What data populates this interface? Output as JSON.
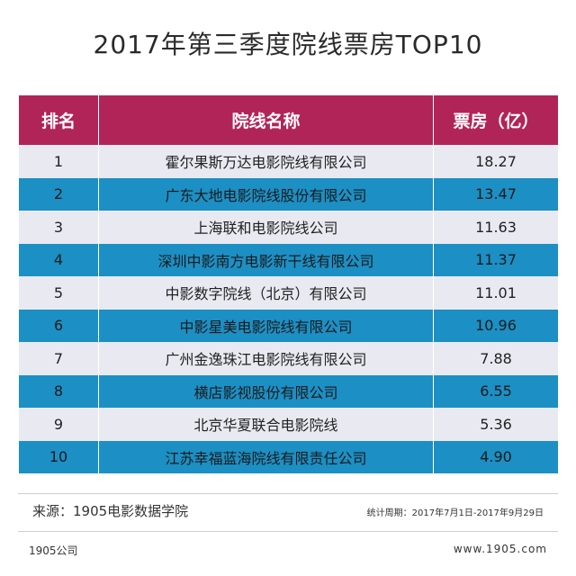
{
  "title": "2017年第三季度院线票房TOP10",
  "chart_data": {
    "type": "table",
    "title": "2017年第三季度院线票房TOP10",
    "columns": [
      "排名",
      "院线名称",
      "票房（亿）"
    ],
    "rows": [
      {
        "rank": "1",
        "name": "霍尔果斯万达电影院线有限公司",
        "box_office": "18.27"
      },
      {
        "rank": "2",
        "name": "广东大地电影院线股份有限公司",
        "box_office": "13.47"
      },
      {
        "rank": "3",
        "name": "上海联和电影院线公司",
        "box_office": "11.63"
      },
      {
        "rank": "4",
        "name": "深圳中影南方电影新干线有限公司",
        "box_office": "11.37"
      },
      {
        "rank": "5",
        "name": "中影数字院线（北京）有限公司",
        "box_office": "11.01"
      },
      {
        "rank": "6",
        "name": "中影星美电影院线有限公司",
        "box_office": "10.96"
      },
      {
        "rank": "7",
        "name": "广州金逸珠江电影院线有限公司",
        "box_office": "7.88"
      },
      {
        "rank": "8",
        "name": "横店影视股份有限公司",
        "box_office": "6.55"
      },
      {
        "rank": "9",
        "name": "北京华夏联合电影院线",
        "box_office": "5.36"
      },
      {
        "rank": "10",
        "name": "江苏幸福蓝海院线有限责任公司",
        "box_office": "4.90"
      }
    ]
  },
  "footer": {
    "source": "来源：1905电影数据学院",
    "period": "统计周期：2017年7月1日-2017年9月29日",
    "company": "1905公司",
    "site": "www.1905.com"
  },
  "colors": {
    "header_bg": "#b12458",
    "row_alt_bg": "#1c8fc4",
    "row_bg": "#e9eaf1"
  }
}
